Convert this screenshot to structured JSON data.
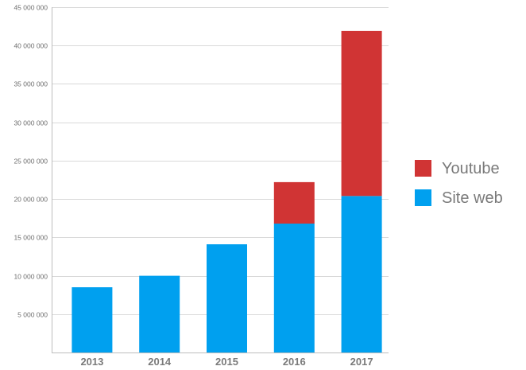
{
  "chart_data": {
    "type": "bar",
    "stacked": true,
    "categories": [
      "2013",
      "2014",
      "2015",
      "2016",
      "2017"
    ],
    "series": [
      {
        "name": "Site web",
        "color": "#00a0ef",
        "values": [
          8500000,
          10000000,
          14100000,
          16800000,
          20400000
        ]
      },
      {
        "name": "Youtube",
        "color": "#d03434",
        "values": [
          0,
          0,
          0,
          5400000,
          21500000
        ]
      }
    ],
    "ylim": [
      0,
      45000000
    ],
    "yticks": [
      5000000,
      10000000,
      15000000,
      20000000,
      25000000,
      30000000,
      35000000,
      40000000,
      45000000
    ],
    "ytick_labels": [
      "5 000 000",
      "10 000 000",
      "15 000 000",
      "20 000 000",
      "25 000 000",
      "30 000 000",
      "35 000 000",
      "40 000 000",
      "45 000 000"
    ],
    "grid": true,
    "legend_position": "right",
    "legend": [
      {
        "name": "Youtube",
        "color": "#d03434"
      },
      {
        "name": "Site web",
        "color": "#00a0ef"
      }
    ]
  }
}
